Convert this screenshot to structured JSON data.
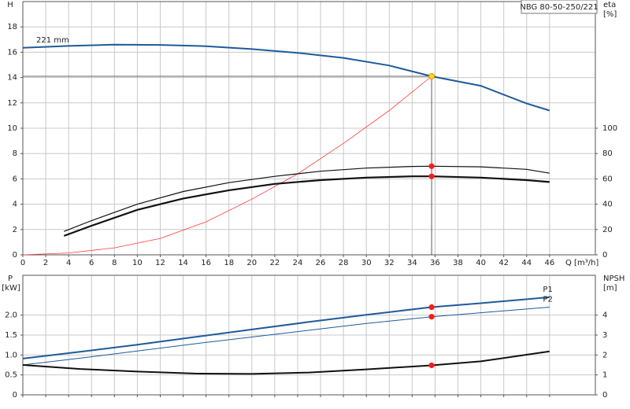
{
  "chart_data": [
    {
      "type": "line",
      "title": "NBG 80-50-250/221",
      "ylabel": "H",
      "y2label": "eta",
      "y2label_unit": "[%]",
      "xlabel": "Q [m³/h]",
      "xlim": [
        0,
        50
      ],
      "xticks": [
        0,
        2,
        4,
        6,
        8,
        10,
        12,
        14,
        16,
        18,
        20,
        22,
        24,
        26,
        28,
        30,
        32,
        34,
        36,
        38,
        40,
        42,
        44,
        46
      ],
      "xtick_labels": true,
      "ylim": [
        0,
        20
      ],
      "yticks": [
        0,
        2,
        4,
        6,
        8,
        10,
        12,
        14,
        16,
        18
      ],
      "y2lim": [
        0,
        200
      ],
      "y2ticks": [
        0,
        20,
        40,
        60,
        80,
        100
      ],
      "grid": true,
      "duty_lines": true,
      "series": [
        {
          "name": "221 mm",
          "label_at": "start",
          "color": "#1f5b99",
          "width": 2,
          "highlight_index": 9,
          "highlight_color": "#ffd21f",
          "x": [
            0,
            4,
            8,
            12,
            16,
            20,
            24,
            28,
            32,
            35.7,
            40,
            44,
            46
          ],
          "values": [
            16.35,
            16.5,
            16.6,
            16.58,
            16.48,
            16.25,
            15.95,
            15.55,
            14.95,
            14.1,
            13.35,
            11.95,
            11.4
          ]
        },
        {
          "color": "#ff3b3b",
          "width": 0.8,
          "x": [
            0,
            4,
            8,
            12,
            16,
            20,
            24,
            28,
            32,
            35.7
          ],
          "values": [
            0,
            0.15,
            0.55,
            1.3,
            2.6,
            4.4,
            6.4,
            8.8,
            11.4,
            14.1
          ]
        },
        {
          "color": "#111111",
          "width": 1.2,
          "axis": "y2",
          "highlight_index": 9,
          "highlight_color": "#ff1a1a",
          "x": [
            3.6,
            6,
            10,
            14,
            18,
            22,
            26,
            30,
            34,
            35.7,
            40,
            44,
            46
          ],
          "values": [
            18.5,
            27,
            40,
            50,
            57,
            62,
            66,
            68.5,
            69.8,
            70,
            69.5,
            67.5,
            64.5
          ]
        },
        {
          "color": "#111111",
          "width": 2.2,
          "axis": "y2",
          "highlight_index": 9,
          "highlight_color": "#ff1a1a",
          "x": [
            3.6,
            6,
            10,
            14,
            18,
            22,
            26,
            30,
            34,
            35.7,
            40,
            44,
            46
          ],
          "values": [
            15,
            23,
            35.5,
            44.5,
            51,
            56,
            59,
            61,
            62,
            62,
            61,
            59,
            57.5
          ]
        }
      ]
    },
    {
      "type": "line",
      "ylabel": "P",
      "ylabel_unit": "[kW]",
      "y2label": "NPSH",
      "y2label_unit": "[m]",
      "xlim": [
        0,
        50
      ],
      "xticks": [
        0,
        2,
        4,
        6,
        8,
        10,
        12,
        14,
        16,
        18,
        20,
        22,
        24,
        26,
        28,
        30,
        32,
        34,
        36,
        38,
        40,
        42,
        44,
        46
      ],
      "xtick_labels": false,
      "ylim": [
        0,
        3
      ],
      "yticks": [
        0,
        0.5,
        {
          "value": 1,
          "label": "1.0"
        },
        1.5,
        {
          "value": 2,
          "label": "2.0"
        }
      ],
      "y2lim": [
        0,
        6
      ],
      "y2ticks": [
        0,
        1,
        2,
        3,
        4
      ],
      "grid": true,
      "series": [
        {
          "name": "P1",
          "label_at": "end",
          "color": "#1f5b99",
          "width": 2,
          "highlight_index": 7,
          "highlight_color": "#ff1a1a",
          "x": [
            0,
            5,
            10,
            15,
            20,
            25,
            30,
            35.7,
            40,
            46
          ],
          "values": [
            0.91,
            1.08,
            1.26,
            1.45,
            1.64,
            1.83,
            2.01,
            2.2,
            2.3,
            2.45
          ]
        },
        {
          "name": "P2",
          "label_at": "end",
          "color": "#1f5b99",
          "width": 1,
          "highlight_index": 7,
          "highlight_color": "#ff1a1a",
          "x": [
            0,
            5,
            10,
            15,
            20,
            25,
            30,
            35.7,
            40,
            46
          ],
          "values": [
            0.75,
            0.92,
            1.1,
            1.28,
            1.45,
            1.62,
            1.79,
            1.96,
            2.06,
            2.2
          ]
        },
        {
          "color": "#111111",
          "width": 2,
          "axis": "y2",
          "highlight_index": 7,
          "highlight_color": "#ff1a1a",
          "x": [
            0,
            5,
            10,
            15,
            20,
            25,
            30,
            35.7,
            40,
            46
          ],
          "values": [
            1.5,
            1.3,
            1.17,
            1.07,
            1.05,
            1.12,
            1.28,
            1.48,
            1.68,
            2.18
          ]
        }
      ]
    }
  ]
}
